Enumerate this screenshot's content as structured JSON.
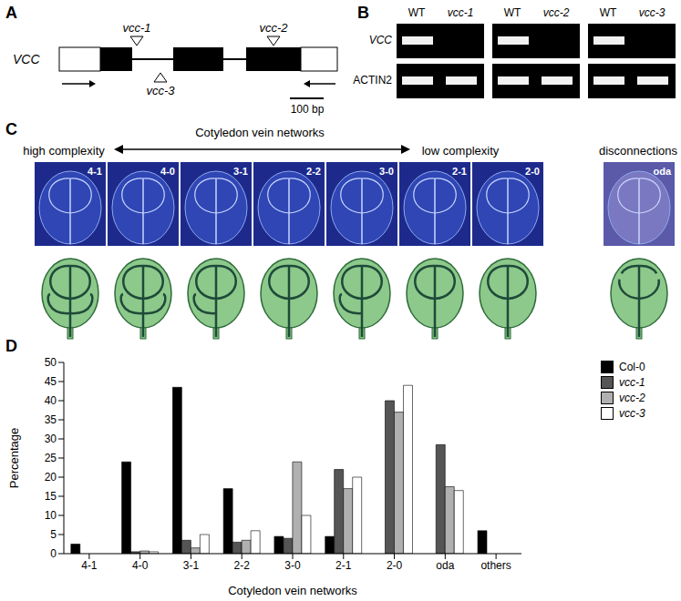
{
  "panels": {
    "A": {
      "label": "A",
      "gene": "VCC",
      "alleles": [
        "vcc-1",
        "vcc-3",
        "vcc-2"
      ],
      "scale_bar": "100 bp"
    },
    "B": {
      "label": "B",
      "rows": [
        "VCC",
        "ACTIN2"
      ],
      "lanes": [
        [
          "WT",
          "vcc-1"
        ],
        [
          "WT",
          "vcc-2"
        ],
        [
          "WT",
          "vcc-3"
        ]
      ],
      "VCC_band": [
        [
          true,
          false
        ],
        [
          true,
          false
        ],
        [
          true,
          false
        ]
      ]
    },
    "C": {
      "label": "C",
      "title": "Cotyledon vein networks",
      "left": "high complexity",
      "right": "low complexity",
      "extra": "disconnections",
      "networks": [
        "4-1",
        "4-0",
        "3-1",
        "2-2",
        "3-0",
        "2-1",
        "2-0"
      ],
      "disconnected": "oda"
    },
    "D": {
      "label": "D"
    }
  },
  "chart_data": {
    "type": "bar",
    "xlabel": "Cotyledon vein networks",
    "ylabel": "Percentage",
    "categories": [
      "4-1",
      "4-0",
      "3-1",
      "2-2",
      "3-0",
      "2-1",
      "2-0",
      "oda",
      "others"
    ],
    "series": [
      {
        "name": "Col-0",
        "color": "#000000",
        "values": [
          2.5,
          24,
          43.5,
          17,
          4.5,
          4.5,
          0,
          0,
          6
        ]
      },
      {
        "name": "vcc-1",
        "color": "#555555",
        "values": [
          0,
          0.5,
          3.5,
          3,
          4,
          22,
          40,
          28.5,
          0
        ]
      },
      {
        "name": "vcc-2",
        "color": "#b0b0b0",
        "values": [
          0,
          0.7,
          1.5,
          3.5,
          24,
          17,
          37,
          17.5,
          0
        ]
      },
      {
        "name": "vcc-3",
        "color": "#ffffff",
        "values": [
          0,
          0.5,
          5,
          6,
          10,
          20,
          44,
          16.5,
          0
        ]
      }
    ],
    "ylim": [
      0,
      50
    ],
    "yticks": [
      0,
      5,
      10,
      15,
      20,
      25,
      30,
      35,
      40,
      45,
      50
    ],
    "grid": false,
    "legend": "upper right"
  }
}
